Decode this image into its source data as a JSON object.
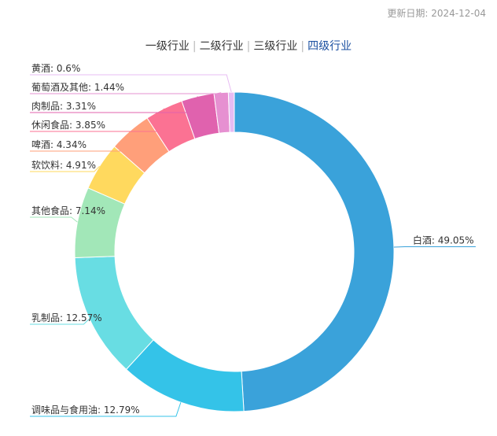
{
  "header": {
    "update_date": "更新日期: 2024-12-04"
  },
  "tabs": [
    {
      "label": "一级行业",
      "active": false
    },
    {
      "label": "二级行业",
      "active": false
    },
    {
      "label": "三级行业",
      "active": false
    },
    {
      "label": "四级行业",
      "active": true
    }
  ],
  "chart_data": {
    "type": "pie",
    "donut": true,
    "title": "",
    "slices": [
      {
        "label": "白酒",
        "value": 49.05,
        "display": "白酒: 49.05%",
        "color": "#3aa2da"
      },
      {
        "label": "调味品与食用油",
        "value": 12.79,
        "display": "调味品与食用油: 12.79%",
        "color": "#34c3e8"
      },
      {
        "label": "乳制品",
        "value": 12.57,
        "display": "乳制品: 12.57%",
        "color": "#68dde3"
      },
      {
        "label": "其他食品",
        "value": 7.14,
        "display": "其他食品: 7.14%",
        "color": "#a2e7b8"
      },
      {
        "label": "软饮料",
        "value": 4.91,
        "display": "软饮料: 4.91%",
        "color": "#ffd95e"
      },
      {
        "label": "啤酒",
        "value": 4.34,
        "display": "啤酒: 4.34%",
        "color": "#ff9f7a"
      },
      {
        "label": "休闲食品",
        "value": 3.85,
        "display": "休闲食品: 3.85%",
        "color": "#fb7293"
      },
      {
        "label": "肉制品",
        "value": 3.31,
        "display": "肉制品: 3.31%",
        "color": "#e062ae"
      },
      {
        "label": "葡萄酒及其他",
        "value": 1.44,
        "display": "葡萄酒及其他: 1.44%",
        "color": "#e690d1"
      },
      {
        "label": "黄酒",
        "value": 0.6,
        "display": "黄酒: 0.6%",
        "color": "#e7bcf3"
      }
    ]
  }
}
